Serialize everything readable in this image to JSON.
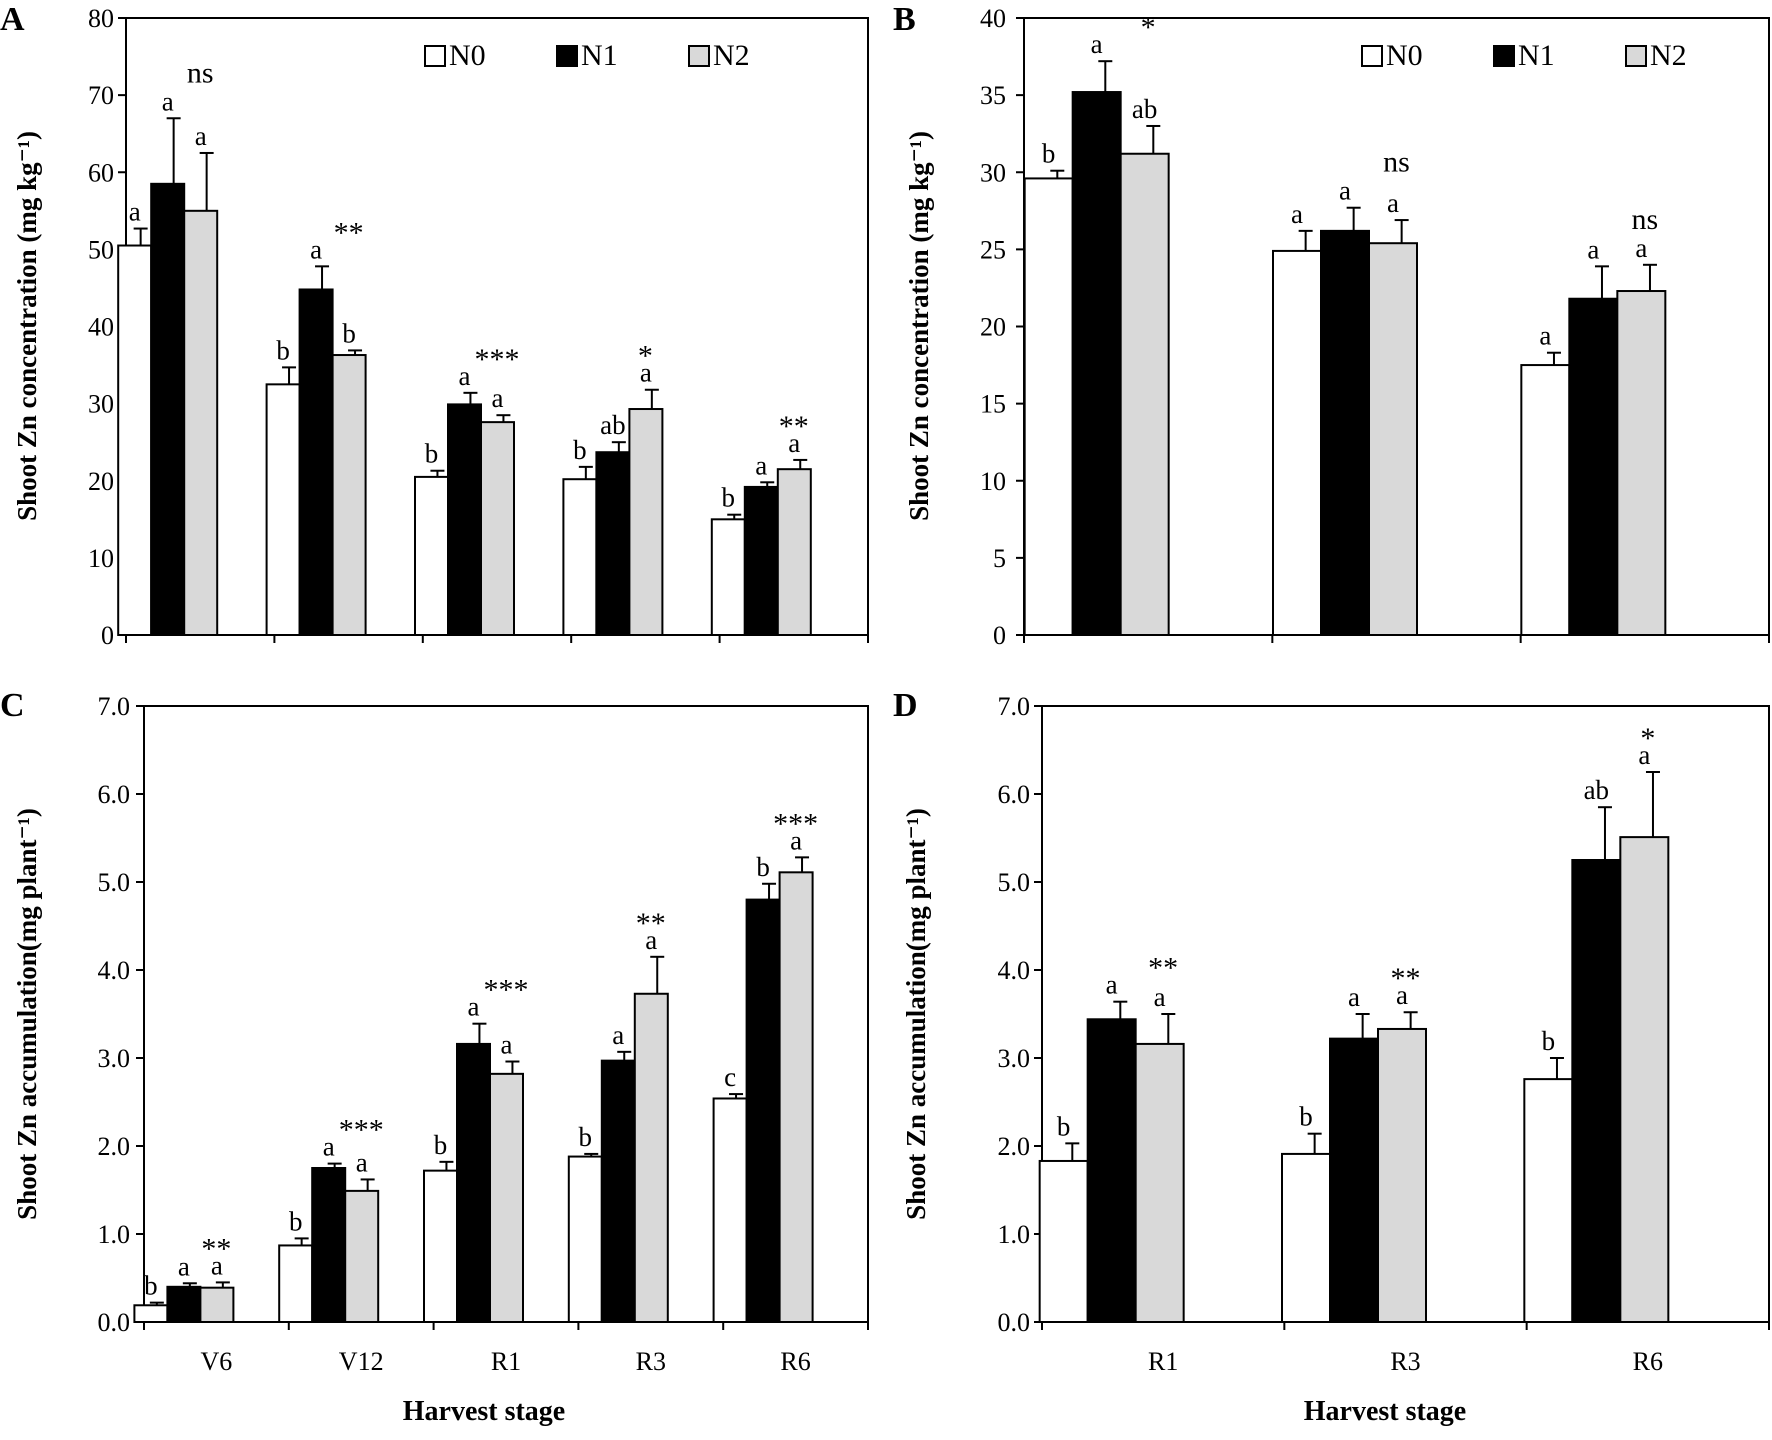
{
  "colors": {
    "N0": "#ffffff",
    "N1": "#000000",
    "N2": "#d9d9d9",
    "axis": "#000000"
  },
  "chart_data": [
    {
      "type": "bar",
      "panel": "A",
      "title": "",
      "xlabel": "",
      "ylabel": "Shoot Zn concentration (mg kg⁻¹)",
      "ylim": [
        0,
        80
      ],
      "yticks": [
        0,
        10,
        20,
        30,
        40,
        50,
        60,
        70,
        80
      ],
      "ytick_labels": [
        "0",
        "10",
        "20",
        "30",
        "40",
        "50",
        "60",
        "70",
        "80"
      ],
      "categories": [
        "V6",
        "V12",
        "R1",
        "R3",
        "R6"
      ],
      "show_category_labels": false,
      "legend": true,
      "series": [
        {
          "name": "N0",
          "values": [
            50.5,
            32.5,
            20.5,
            20.2,
            15.0
          ],
          "errors": [
            2.2,
            2.2,
            0.8,
            1.6,
            0.6
          ],
          "letters": [
            "a",
            "b",
            "b",
            "b",
            "b"
          ]
        },
        {
          "name": "N1",
          "values": [
            58.5,
            44.8,
            29.9,
            23.7,
            19.2
          ],
          "errors": [
            8.5,
            3.0,
            1.5,
            1.3,
            0.6
          ],
          "letters": [
            "a",
            "a",
            "a",
            "ab",
            "a"
          ]
        },
        {
          "name": "N2",
          "values": [
            55.0,
            36.3,
            27.6,
            29.3,
            21.5
          ],
          "errors": [
            7.5,
            0.6,
            0.9,
            2.5,
            1.2
          ],
          "letters": [
            "a",
            "b",
            "a",
            "a",
            "a"
          ]
        }
      ],
      "significance": [
        "ns",
        "**",
        "***",
        "*",
        "**"
      ]
    },
    {
      "type": "bar",
      "panel": "B",
      "title": "",
      "xlabel": "",
      "ylabel": "Shoot Zn concentration (mg kg⁻¹)",
      "ylim": [
        0,
        40
      ],
      "yticks": [
        0,
        5,
        10,
        15,
        20,
        25,
        30,
        35,
        40
      ],
      "ytick_labels": [
        "0",
        "5",
        "10",
        "15",
        "20",
        "25",
        "30",
        "35",
        "40"
      ],
      "categories": [
        "R1",
        "R3",
        "R6"
      ],
      "show_category_labels": false,
      "legend": true,
      "series": [
        {
          "name": "N0",
          "values": [
            29.6,
            24.9,
            17.5
          ],
          "errors": [
            0.5,
            1.3,
            0.8
          ],
          "letters": [
            "b",
            "a",
            "a"
          ]
        },
        {
          "name": "N1",
          "values": [
            35.2,
            26.2,
            21.8
          ],
          "errors": [
            2.0,
            1.5,
            2.1
          ],
          "letters": [
            "a",
            "a",
            "a"
          ]
        },
        {
          "name": "N2",
          "values": [
            31.2,
            25.4,
            22.3
          ],
          "errors": [
            1.8,
            1.5,
            1.7
          ],
          "letters": [
            "ab",
            "a",
            "a"
          ]
        }
      ],
      "significance": [
        "*",
        "ns",
        "ns"
      ]
    },
    {
      "type": "bar",
      "panel": "C",
      "title": "",
      "xlabel": "Harvest stage",
      "ylabel": "Shoot Zn accumulation(mg plant⁻¹)",
      "ylim": [
        0,
        7
      ],
      "yticks": [
        0,
        1,
        2,
        3,
        4,
        5,
        6,
        7
      ],
      "ytick_labels": [
        "0.0",
        "1.0",
        "2.0",
        "3.0",
        "4.0",
        "5.0",
        "6.0",
        "7.0"
      ],
      "categories": [
        "V6",
        "V12",
        "R1",
        "R3",
        "R6"
      ],
      "show_category_labels": true,
      "legend": false,
      "series": [
        {
          "name": "N0",
          "values": [
            0.19,
            0.87,
            1.72,
            1.88,
            2.54
          ],
          "errors": [
            0.03,
            0.08,
            0.1,
            0.03,
            0.05
          ],
          "letters": [
            "b",
            "b",
            "b",
            "b",
            "c"
          ]
        },
        {
          "name": "N1",
          "values": [
            0.4,
            1.75,
            3.16,
            2.97,
            4.8
          ],
          "errors": [
            0.04,
            0.05,
            0.23,
            0.1,
            0.18
          ],
          "letters": [
            "a",
            "a",
            "a",
            "a",
            "b"
          ]
        },
        {
          "name": "N2",
          "values": [
            0.39,
            1.49,
            2.82,
            3.73,
            5.11
          ],
          "errors": [
            0.06,
            0.13,
            0.14,
            0.42,
            0.17
          ],
          "letters": [
            "a",
            "a",
            "a",
            "a",
            "a"
          ]
        }
      ],
      "significance": [
        "**",
        "***",
        "***",
        "**",
        "***"
      ]
    },
    {
      "type": "bar",
      "panel": "D",
      "title": "",
      "xlabel": "Harvest stage",
      "ylabel": "Shoot Zn accumulation(mg plant⁻¹)",
      "ylim": [
        0,
        7
      ],
      "yticks": [
        0,
        1,
        2,
        3,
        4,
        5,
        6,
        7
      ],
      "ytick_labels": [
        "0.0",
        "1.0",
        "2.0",
        "3.0",
        "4.0",
        "5.0",
        "6.0",
        "7.0"
      ],
      "categories": [
        "R1",
        "R3",
        "R6"
      ],
      "show_category_labels": true,
      "legend": false,
      "series": [
        {
          "name": "N0",
          "values": [
            1.83,
            1.91,
            2.76
          ],
          "errors": [
            0.2,
            0.23,
            0.24
          ],
          "letters": [
            "b",
            "b",
            "b"
          ]
        },
        {
          "name": "N1",
          "values": [
            3.44,
            3.22,
            5.25
          ],
          "errors": [
            0.2,
            0.28,
            0.6
          ],
          "letters": [
            "a",
            "a",
            "ab"
          ]
        },
        {
          "name": "N2",
          "values": [
            3.16,
            3.33,
            5.51
          ],
          "errors": [
            0.34,
            0.19,
            0.74
          ],
          "letters": [
            "a",
            "a",
            "a"
          ]
        }
      ],
      "significance": [
        "**",
        "**",
        "*"
      ]
    }
  ]
}
